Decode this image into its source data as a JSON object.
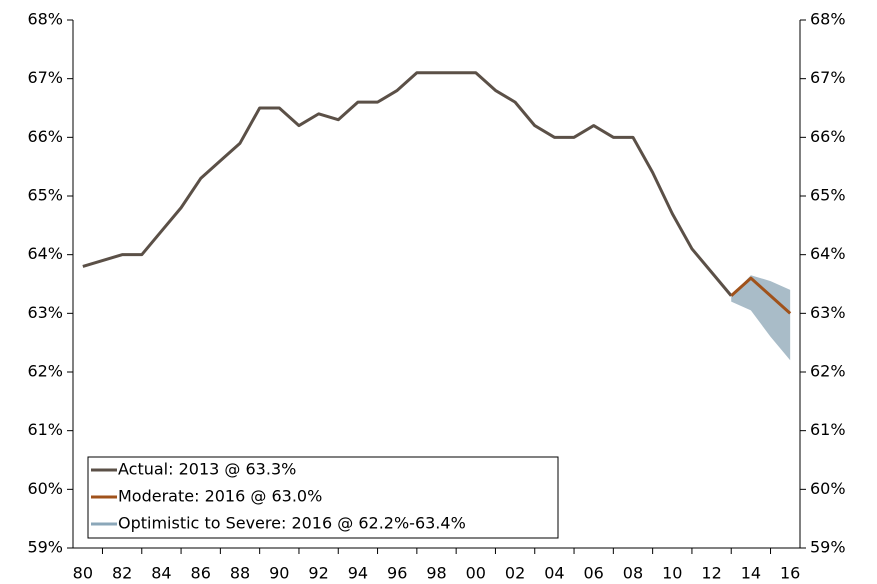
{
  "chart_data": {
    "type": "line",
    "categories": [
      "80",
      null,
      "82",
      null,
      "84",
      null,
      "86",
      null,
      "88",
      null,
      "90",
      null,
      "92",
      null,
      "94",
      null,
      "96",
      null,
      "98",
      null,
      "00",
      null,
      "02",
      null,
      "04",
      null,
      "06",
      null,
      "08",
      null,
      "10",
      null,
      "12",
      null,
      "14",
      null,
      "16"
    ],
    "series": [
      {
        "name": "Actual: 2013 @ 63.3%",
        "color": "#5b5047",
        "values": [
          63.8,
          63.9,
          64.0,
          64.0,
          64.4,
          64.8,
          65.3,
          65.6,
          65.9,
          66.5,
          66.5,
          66.2,
          66.4,
          66.3,
          66.6,
          66.6,
          66.8,
          67.1,
          67.1,
          67.1,
          67.1,
          66.8,
          66.6,
          66.2,
          66.0,
          66.0,
          66.2,
          66.0,
          66.0,
          65.4,
          64.7,
          64.1,
          63.7,
          63.3,
          null,
          null,
          null
        ]
      },
      {
        "name": "Moderate: 2016 @ 63.0%",
        "color": "#a0521b",
        "values": [
          null,
          null,
          null,
          null,
          null,
          null,
          null,
          null,
          null,
          null,
          null,
          null,
          null,
          null,
          null,
          null,
          null,
          null,
          null,
          null,
          null,
          null,
          null,
          null,
          null,
          null,
          null,
          null,
          null,
          null,
          null,
          null,
          null,
          63.3,
          63.6,
          63.3,
          63.0
        ]
      },
      {
        "name": "Optimistic to Severe: 2016 @ 62.2%-63.4%",
        "color": "#a9bcc8",
        "legend_color": "#8ba7b9",
        "upper": [
          null,
          null,
          null,
          null,
          null,
          null,
          null,
          null,
          null,
          null,
          null,
          null,
          null,
          null,
          null,
          null,
          null,
          null,
          null,
          null,
          null,
          null,
          null,
          null,
          null,
          null,
          null,
          null,
          null,
          null,
          null,
          null,
          null,
          63.3,
          63.65,
          63.55,
          63.4
        ],
        "lower": [
          null,
          null,
          null,
          null,
          null,
          null,
          null,
          null,
          null,
          null,
          null,
          null,
          null,
          null,
          null,
          null,
          null,
          null,
          null,
          null,
          null,
          null,
          null,
          null,
          null,
          null,
          null,
          null,
          null,
          null,
          null,
          null,
          null,
          63.2,
          63.05,
          62.6,
          62.2
        ]
      }
    ],
    "ylim": [
      59,
      68
    ],
    "yticks": [
      {
        "value": 59,
        "label": "59%"
      },
      {
        "value": 60,
        "label": "60%"
      },
      {
        "value": 61,
        "label": "61%"
      },
      {
        "value": 62,
        "label": "62%"
      },
      {
        "value": 63,
        "label": "63%"
      },
      {
        "value": 64,
        "label": "64%"
      },
      {
        "value": 65,
        "label": "65%"
      },
      {
        "value": 66,
        "label": "66%"
      },
      {
        "value": 67,
        "label": "67%"
      },
      {
        "value": 68,
        "label": "68%"
      }
    ],
    "grid": false,
    "legend": "lower left"
  }
}
